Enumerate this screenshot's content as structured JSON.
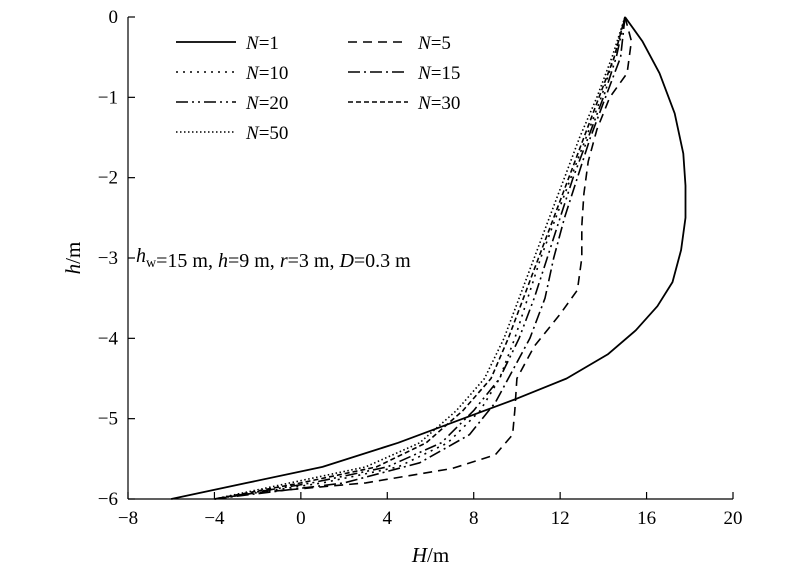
{
  "chart_data": {
    "type": "line",
    "title": "",
    "xlabel": {
      "var": "H",
      "unit": "/m"
    },
    "ylabel": {
      "var": "h",
      "unit": "/m"
    },
    "xlim": [
      -8,
      20
    ],
    "ylim": [
      -6,
      0
    ],
    "xticks": [
      -8,
      -4,
      0,
      4,
      8,
      12,
      16,
      20
    ],
    "yticks": [
      0,
      -1,
      -2,
      -3,
      -4,
      -5,
      -6
    ],
    "xtick_labels": [
      "−8",
      "−4",
      "0",
      "4",
      "8",
      "12",
      "16",
      "20"
    ],
    "ytick_labels": [
      "0",
      "−1",
      "−2",
      "−3",
      "−4",
      "−5",
      "−6"
    ],
    "grid": false,
    "legend_position": "top-left",
    "annotation": "h_w=15 m, h=9 m, r=3 m, D=0.3 m",
    "annotation_parts": [
      {
        "text": "h",
        "italic": true
      },
      {
        "text": "w",
        "sub": true
      },
      {
        "text": "=15 m, "
      },
      {
        "text": "h",
        "italic": true
      },
      {
        "text": "=9 m, "
      },
      {
        "text": "r",
        "italic": true
      },
      {
        "text": "=3 m, "
      },
      {
        "text": "D",
        "italic": true
      },
      {
        "text": "=0.3 m"
      }
    ],
    "series": [
      {
        "name": "N=1",
        "label_var": "N",
        "label_value": "=1",
        "dash": "solid",
        "points": [
          [
            15.0,
            0
          ],
          [
            15.8,
            -0.3
          ],
          [
            16.6,
            -0.7
          ],
          [
            17.3,
            -1.2
          ],
          [
            17.7,
            -1.7
          ],
          [
            17.8,
            -2.1
          ],
          [
            17.8,
            -2.5
          ],
          [
            17.6,
            -2.9
          ],
          [
            17.2,
            -3.3
          ],
          [
            16.5,
            -3.6
          ],
          [
            15.5,
            -3.9
          ],
          [
            14.2,
            -4.2
          ],
          [
            12.3,
            -4.5
          ],
          [
            10.0,
            -4.75
          ],
          [
            7.5,
            -5.0
          ],
          [
            4.5,
            -5.3
          ],
          [
            1.0,
            -5.6
          ],
          [
            -2.5,
            -5.8
          ],
          [
            -6.0,
            -6.0
          ]
        ]
      },
      {
        "name": "N=5",
        "label_var": "N",
        "label_value": "=5",
        "dash": "9,6",
        "points": [
          [
            15.0,
            0
          ],
          [
            15.3,
            -0.3
          ],
          [
            15.1,
            -0.7
          ],
          [
            14.3,
            -1.0
          ],
          [
            13.7,
            -1.4
          ],
          [
            13.3,
            -1.8
          ],
          [
            13.1,
            -2.2
          ],
          [
            13.0,
            -2.6
          ],
          [
            13.0,
            -3.0
          ],
          [
            12.8,
            -3.4
          ],
          [
            12.0,
            -3.7
          ],
          [
            10.8,
            -4.1
          ],
          [
            10.0,
            -4.5
          ],
          [
            9.9,
            -4.9
          ],
          [
            9.8,
            -5.2
          ],
          [
            9.0,
            -5.45
          ],
          [
            7.0,
            -5.62
          ],
          [
            3.0,
            -5.8
          ],
          [
            -2.0,
            -5.92
          ],
          [
            -4.0,
            -6.0
          ]
        ]
      },
      {
        "name": "N=10",
        "label_var": "N",
        "label_value": "=10",
        "dash": "2,5",
        "points": [
          [
            15.0,
            0
          ],
          [
            14.5,
            -0.5
          ],
          [
            13.9,
            -1.0
          ],
          [
            13.2,
            -1.5
          ],
          [
            12.5,
            -2.0
          ],
          [
            11.8,
            -2.5
          ],
          [
            11.1,
            -3.0
          ],
          [
            10.5,
            -3.5
          ],
          [
            9.9,
            -4.0
          ],
          [
            9.2,
            -4.5
          ],
          [
            8.3,
            -4.9
          ],
          [
            6.8,
            -5.3
          ],
          [
            4.5,
            -5.6
          ],
          [
            1.0,
            -5.8
          ],
          [
            -4.0,
            -6.0
          ]
        ]
      },
      {
        "name": "N=15",
        "label_var": "N",
        "label_value": "=15",
        "dash": "12,4,2,4",
        "points": [
          [
            15.0,
            0
          ],
          [
            14.8,
            -0.5
          ],
          [
            14.1,
            -1.0
          ],
          [
            13.4,
            -1.5
          ],
          [
            12.8,
            -2.0
          ],
          [
            12.2,
            -2.5
          ],
          [
            11.7,
            -3.0
          ],
          [
            11.3,
            -3.5
          ],
          [
            10.6,
            -4.0
          ],
          [
            9.8,
            -4.4
          ],
          [
            9.0,
            -4.8
          ],
          [
            7.8,
            -5.2
          ],
          [
            5.5,
            -5.55
          ],
          [
            2.0,
            -5.8
          ],
          [
            -4.0,
            -6.0
          ]
        ]
      },
      {
        "name": "N=20",
        "label_var": "N",
        "label_value": "=20",
        "dash": "12,4,2,4,2,4",
        "points": [
          [
            15.0,
            0
          ],
          [
            14.6,
            -0.5
          ],
          [
            14.0,
            -1.0
          ],
          [
            13.3,
            -1.5
          ],
          [
            12.6,
            -2.0
          ],
          [
            12.0,
            -2.5
          ],
          [
            11.4,
            -3.0
          ],
          [
            10.8,
            -3.5
          ],
          [
            10.1,
            -4.0
          ],
          [
            9.2,
            -4.5
          ],
          [
            8.0,
            -4.9
          ],
          [
            6.5,
            -5.3
          ],
          [
            4.0,
            -5.6
          ],
          [
            0.5,
            -5.8
          ],
          [
            -4.0,
            -6.0
          ]
        ]
      },
      {
        "name": "N=30",
        "label_var": "N",
        "label_value": "=30",
        "dash": "5,3",
        "points": [
          [
            15.0,
            0
          ],
          [
            14.5,
            -0.5
          ],
          [
            13.8,
            -1.0
          ],
          [
            13.1,
            -1.5
          ],
          [
            12.4,
            -2.0
          ],
          [
            11.7,
            -2.5
          ],
          [
            11.0,
            -3.0
          ],
          [
            10.3,
            -3.5
          ],
          [
            9.6,
            -4.0
          ],
          [
            8.8,
            -4.5
          ],
          [
            7.5,
            -4.9
          ],
          [
            5.8,
            -5.3
          ],
          [
            3.5,
            -5.6
          ],
          [
            0.0,
            -5.8
          ],
          [
            -4.0,
            -6.0
          ]
        ]
      },
      {
        "name": "N=50",
        "label_var": "N",
        "label_value": "=50",
        "dash": "1.5,2.5",
        "points": [
          [
            15.0,
            0
          ],
          [
            14.4,
            -0.5
          ],
          [
            13.7,
            -1.0
          ],
          [
            12.9,
            -1.5
          ],
          [
            12.2,
            -2.0
          ],
          [
            11.5,
            -2.5
          ],
          [
            10.8,
            -3.0
          ],
          [
            10.1,
            -3.5
          ],
          [
            9.4,
            -4.0
          ],
          [
            8.5,
            -4.5
          ],
          [
            7.2,
            -4.9
          ],
          [
            5.5,
            -5.3
          ],
          [
            3.0,
            -5.6
          ],
          [
            -0.5,
            -5.8
          ],
          [
            -4.0,
            -6.0
          ]
        ]
      }
    ]
  }
}
